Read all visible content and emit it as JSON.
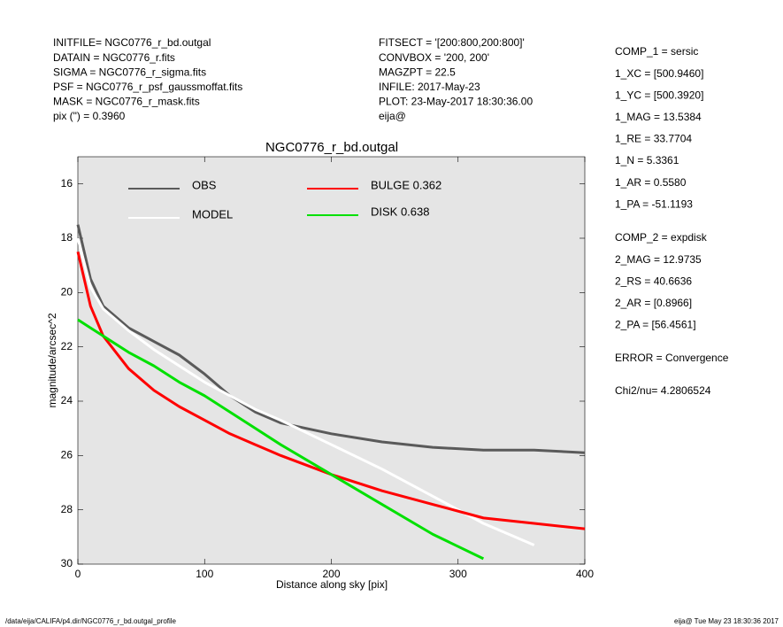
{
  "header": {
    "left": [
      "INITFILE= NGC0776_r_bd.outgal",
      "DATAIN  = NGC0776_r.fits",
      "SIGMA  = NGC0776_r_sigma.fits",
      "PSF    = NGC0776_r_psf_gaussmoffat.fits",
      "MASK   = NGC0776_r_mask.fits",
      "pix (\") =  0.3960"
    ],
    "middle": [
      "FITSECT = '[200:800,200:800]'",
      "CONVBOX = '200, 200'",
      "MAGZPT  =             22.5",
      "INFILE: 2017-May-23",
      "PLOT: 23-May-2017 18:30:36.00",
      "eija@"
    ]
  },
  "params": {
    "comp1": [
      "COMP_1  = sersic",
      "1_XC    = [500.9460]",
      "1_YC    = [500.3920]",
      "1_MAG   = 13.5384",
      "1_RE    = 33.7704",
      "1_N     = 5.3361",
      "1_AR    = 0.5580",
      "1_PA    = -51.1193"
    ],
    "comp2": [
      "COMP_2  = expdisk",
      "2_MAG   = 12.9735",
      "2_RS    = 40.6636",
      "2_AR    = [0.8966]",
      "2_PA    = [56.4561]"
    ],
    "error": "ERROR   = Convergence",
    "chi2": "Chi2/nu=       4.2806524"
  },
  "footer": {
    "left": "/data/eija/CALIFA/p4.dir/NGC0776_r_bd.outgal_profile",
    "right": "eija@   Tue May 23 18:30:36 2017"
  },
  "chart_data": {
    "type": "line",
    "title": "NGC0776_r_bd.outgal",
    "x_label": "Distance along sky [pix]",
    "y_label": "magnitude/arcsec^2",
    "x": [
      0,
      10,
      20,
      40,
      60,
      80,
      100,
      120,
      140,
      160,
      200,
      240,
      280,
      320,
      360,
      400
    ],
    "xlim": [
      0,
      400
    ],
    "xticks": [
      0,
      100,
      200,
      300,
      400
    ],
    "ylim": [
      15,
      30
    ],
    "yticks": [
      16,
      18,
      20,
      22,
      24,
      26,
      28,
      30
    ],
    "y_inverted": true,
    "background": "#e5e5e5",
    "series": [
      {
        "name": "OBS",
        "color": "#5a5a5a",
        "values": [
          17.5,
          19.5,
          20.5,
          21.3,
          21.8,
          22.3,
          23.0,
          23.8,
          24.4,
          24.8,
          25.2,
          25.5,
          25.7,
          25.8,
          25.8,
          25.9
        ]
      },
      {
        "name": "MODEL",
        "color": "#ffffff",
        "values": [
          18.0,
          19.8,
          20.6,
          21.4,
          22.1,
          22.7,
          23.3,
          23.8,
          24.3,
          24.7,
          25.6,
          26.5,
          27.5,
          28.5,
          29.3,
          null
        ]
      },
      {
        "name": "BULGE  0.362",
        "color": "#ff0000",
        "values": [
          18.5,
          20.5,
          21.6,
          22.8,
          23.6,
          24.2,
          24.7,
          25.2,
          25.6,
          26.0,
          26.7,
          27.3,
          27.8,
          28.3,
          28.5,
          28.7
        ]
      },
      {
        "name": "DISK  0.638",
        "color": "#00e000",
        "values": [
          21.0,
          21.3,
          21.6,
          22.2,
          22.7,
          23.3,
          23.8,
          24.4,
          25.0,
          25.6,
          26.7,
          27.8,
          28.9,
          29.8,
          null,
          null
        ]
      }
    ]
  }
}
